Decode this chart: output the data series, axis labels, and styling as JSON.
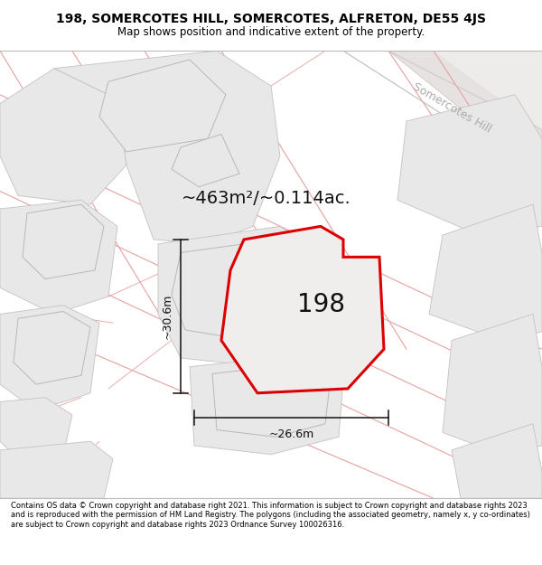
{
  "title_line1": "198, SOMERCOTES HILL, SOMERCOTES, ALFRETON, DE55 4JS",
  "title_line2": "Map shows position and indicative extent of the property.",
  "footer_text": "Contains OS data © Crown copyright and database right 2021. This information is subject to Crown copyright and database rights 2023 and is reproduced with the permission of HM Land Registry. The polygons (including the associated geometry, namely x, y co-ordinates) are subject to Crown copyright and database rights 2023 Ordnance Survey 100026316.",
  "area_label": "~463m²/~0.114ac.",
  "plot_number": "198",
  "dim_width": "~26.6m",
  "dim_height": "~30.6m",
  "street_name": "Somercotes Hill",
  "map_bg": "#ffffff",
  "building_fill": "#e8e8e8",
  "building_edge": "#b0b0b0",
  "road_fill": "#e0dede",
  "road_edge": "#c0bcbc",
  "cadastral_color": "#e8a0a0",
  "red_color": "#dd0000",
  "dim_color": "#111111",
  "title_fontsize": 10,
  "subtitle_fontsize": 8.5,
  "area_fontsize": 14,
  "plot_num_fontsize": 20,
  "dim_fontsize": 9,
  "street_fontsize": 9
}
